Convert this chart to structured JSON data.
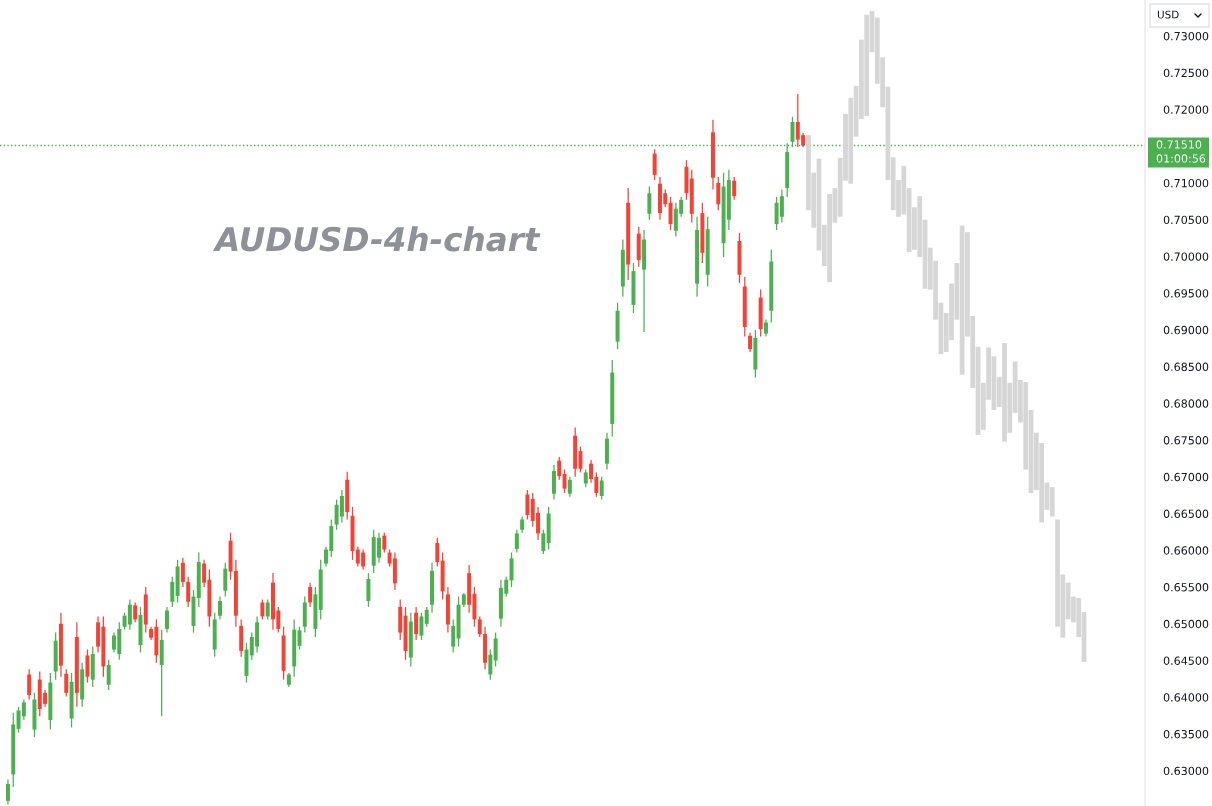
{
  "chart_data": {
    "type": "candlestick",
    "title": "AUDUSD-4h-chart",
    "ylabel": "USD",
    "annotations": [
      "01:00:56"
    ],
    "categories": [
      null,
      null,
      null,
      null,
      null,
      null,
      null,
      null,
      null,
      null,
      null,
      null,
      null,
      null,
      null,
      null,
      null,
      null,
      null,
      null,
      null,
      null,
      null,
      null,
      null,
      null,
      null,
      null,
      null,
      null,
      null,
      null,
      null,
      null,
      null,
      null,
      null,
      null,
      null,
      null,
      null,
      null,
      null,
      null,
      null,
      null,
      null,
      null,
      null,
      null,
      null,
      null,
      null,
      null,
      null,
      null,
      null,
      null,
      null,
      null,
      null,
      null,
      null,
      null,
      null,
      null,
      null,
      null,
      null,
      null,
      null,
      null,
      null,
      null,
      null,
      null,
      null,
      null,
      null,
      null,
      null,
      null,
      null,
      null,
      null,
      null,
      null,
      null,
      null,
      null,
      null,
      null,
      null,
      null,
      null,
      null,
      null,
      null,
      null,
      null,
      null,
      null,
      null,
      null,
      null,
      null,
      null,
      null,
      null,
      null,
      null,
      null,
      null,
      null,
      null,
      null,
      null,
      null,
      null,
      null,
      null,
      null,
      null,
      null,
      null,
      null,
      null,
      null,
      null,
      null,
      null,
      null,
      null,
      null,
      null,
      null,
      null,
      null,
      null,
      null,
      null,
      null,
      null,
      null,
      null,
      null,
      null,
      null,
      null,
      null,
      null,
      null,
      null,
      null,
      null,
      null,
      null,
      null,
      null,
      null,
      null,
      null,
      null,
      null,
      null,
      null,
      null,
      null,
      null,
      null,
      null,
      null,
      null,
      null,
      null,
      null,
      null,
      null,
      null,
      null,
      null,
      null,
      null,
      null,
      null,
      null,
      null,
      null,
      null,
      null,
      null,
      null,
      null,
      null,
      null,
      null,
      null,
      null,
      null,
      null,
      null,
      null,
      null,
      null,
      null,
      null,
      null,
      null,
      null,
      null,
      null,
      null,
      null,
      null,
      null,
      null
    ],
    "series": [
      {
        "ohlc": [
          null,
          [
            0.6259,
            0.6288,
            0.6254,
            0.6282
          ],
          [
            0.6295,
            0.6379,
            0.6278,
            0.6363
          ],
          [
            0.6357,
            0.6387,
            0.6352,
            0.6382
          ],
          [
            0.6374,
            0.6397,
            0.6369,
            0.6393
          ],
          [
            0.6431,
            0.6438,
            0.6397,
            0.6403
          ],
          [
            0.6356,
            0.6406,
            0.6346,
            0.6397
          ],
          [
            0.6424,
            0.6435,
            0.6374,
            0.6384
          ],
          [
            0.6406,
            0.641,
            0.6387,
            0.6391
          ],
          [
            0.6369,
            0.6433,
            0.6356,
            0.642
          ],
          [
            0.6435,
            0.6488,
            0.6424,
            0.6477
          ],
          [
            0.65,
            0.6515,
            0.6428,
            0.6443
          ],
          [
            0.6432,
            0.6438,
            0.6401,
            0.6406
          ],
          [
            0.6371,
            0.6433,
            0.6359,
            0.6421
          ],
          [
            0.6482,
            0.6502,
            0.6387,
            0.6406
          ],
          [
            0.6397,
            0.6447,
            0.6387,
            0.6438
          ],
          [
            0.6457,
            0.6465,
            0.642,
            0.6428
          ],
          [
            0.6424,
            0.6469,
            0.6414,
            0.6459
          ],
          [
            0.6502,
            0.651,
            0.6461,
            0.6469
          ],
          [
            0.6496,
            0.651,
            0.6428,
            0.6442
          ],
          [
            0.6417,
            0.6451,
            0.641,
            0.6444
          ],
          [
            0.6465,
            0.6488,
            0.6461,
            0.6484
          ],
          [
            0.6459,
            0.6502,
            0.6451,
            0.6493
          ],
          [
            0.6496,
            0.6515,
            0.6492,
            0.6511
          ],
          [
            0.6499,
            0.6533,
            0.6492,
            0.6526
          ],
          [
            0.6525,
            0.6529,
            0.6502,
            0.6506
          ],
          [
            0.6471,
            0.6523,
            0.6461,
            0.6512
          ],
          [
            0.654,
            0.655,
            0.6488,
            0.6499
          ],
          [
            0.6493,
            0.6496,
            0.6478,
            0.6481
          ],
          [
            0.6496,
            0.6506,
            0.6447,
            0.6457
          ],
          [
            0.6444,
            0.6492,
            0.6374,
            0.6478
          ],
          [
            0.6493,
            0.6523,
            0.6488,
            0.6518
          ],
          [
            0.653,
            0.6564,
            0.6523,
            0.6557
          ],
          [
            0.6538,
            0.6587,
            0.6529,
            0.6578
          ],
          [
            0.6583,
            0.659,
            0.655,
            0.6557
          ],
          [
            0.6557,
            0.6564,
            0.6523,
            0.653
          ],
          [
            0.6497,
            0.6546,
            0.6488,
            0.6537
          ],
          [
            0.6535,
            0.6597,
            0.6523,
            0.6584
          ],
          [
            0.6582,
            0.6587,
            0.655,
            0.6556
          ],
          [
            0.656,
            0.6574,
            0.6496,
            0.651
          ],
          [
            0.6465,
            0.6515,
            0.6455,
            0.6506
          ],
          [
            0.6511,
            0.6537,
            0.6506,
            0.6531
          ],
          [
            0.6545,
            0.6583,
            0.6537,
            0.6575
          ],
          [
            0.6613,
            0.6624,
            0.656,
            0.6571
          ],
          [
            0.6572,
            0.6587,
            0.6496,
            0.6511
          ],
          [
            0.6497,
            0.6506,
            0.6455,
            0.6463
          ],
          [
            0.6429,
            0.6474,
            0.642,
            0.6465
          ],
          [
            0.6457,
            0.6488,
            0.6451,
            0.6482
          ],
          [
            0.6469,
            0.651,
            0.6461,
            0.6502
          ],
          [
            0.6529,
            0.6533,
            0.6506,
            0.651
          ],
          [
            0.651,
            0.6533,
            0.6506,
            0.6529
          ],
          [
            0.6556,
            0.6569,
            0.6492,
            0.6506
          ],
          [
            0.6518,
            0.6523,
            0.6488,
            0.6493
          ],
          [
            0.6484,
            0.6496,
            0.6424,
            0.6436
          ],
          [
            0.6417,
            0.6433,
            0.6414,
            0.6431
          ],
          [
            0.6442,
            0.6506,
            0.6428,
            0.6492
          ],
          [
            0.647,
            0.6496,
            0.6465,
            0.6491
          ],
          [
            0.6496,
            0.6537,
            0.6488,
            0.6529
          ],
          [
            0.655,
            0.6556,
            0.6523,
            0.6529
          ],
          [
            0.6493,
            0.655,
            0.6482,
            0.654
          ],
          [
            0.6519,
            0.6587,
            0.6506,
            0.6574
          ],
          [
            0.6582,
            0.6605,
            0.6578,
            0.6601
          ],
          [
            0.6599,
            0.6642,
            0.6591,
            0.6633
          ],
          [
            0.6635,
            0.6669,
            0.6628,
            0.6662
          ],
          [
            0.6646,
            0.6682,
            0.6638,
            0.6674
          ],
          [
            0.6696,
            0.6707,
            0.6642,
            0.6652
          ],
          [
            0.6647,
            0.6659,
            0.6587,
            0.6599
          ],
          [
            0.6601,
            0.6605,
            0.6578,
            0.6582
          ],
          [
            0.6597,
            0.6601,
            0.6574,
            0.6578
          ],
          [
            0.6531,
            0.6569,
            0.6523,
            0.6561
          ],
          [
            0.6579,
            0.6628,
            0.6569,
            0.6618
          ],
          [
            0.659,
            0.6624,
            0.6583,
            0.6617
          ],
          [
            0.662,
            0.6624,
            0.6597,
            0.6601
          ],
          [
            0.6597,
            0.6601,
            0.6578,
            0.6582
          ],
          [
            0.6589,
            0.6597,
            0.6546,
            0.6555
          ],
          [
            0.6523,
            0.6533,
            0.6478,
            0.6488
          ],
          [
            0.6511,
            0.6523,
            0.6451,
            0.6463
          ],
          [
            0.6454,
            0.6515,
            0.6442,
            0.6503
          ],
          [
            0.6515,
            0.6523,
            0.6478,
            0.6486
          ],
          [
            0.6484,
            0.6515,
            0.6478,
            0.651
          ],
          [
            0.65,
            0.6523,
            0.6496,
            0.6519
          ],
          [
            0.6526,
            0.6583,
            0.6515,
            0.6572
          ],
          [
            0.661,
            0.6617,
            0.6578,
            0.6584
          ],
          [
            0.6586,
            0.6597,
            0.6533,
            0.6544
          ],
          [
            0.654,
            0.655,
            0.6488,
            0.6499
          ],
          [
            0.6469,
            0.6506,
            0.6461,
            0.6497
          ],
          [
            0.648,
            0.6537,
            0.6469,
            0.6526
          ],
          [
            0.6526,
            0.6542,
            0.6523,
            0.654
          ],
          [
            0.6569,
            0.658,
            0.6515,
            0.6526
          ],
          [
            0.6541,
            0.655,
            0.6496,
            0.6506
          ],
          [
            0.6506,
            0.651,
            0.6482,
            0.6486
          ],
          [
            0.6486,
            0.6496,
            0.6438,
            0.6447
          ],
          [
            0.6431,
            0.6465,
            0.6424,
            0.6458
          ],
          [
            0.645,
            0.6488,
            0.6442,
            0.648
          ],
          [
            0.6507,
            0.656,
            0.6496,
            0.6549
          ],
          [
            0.6541,
            0.6564,
            0.6537,
            0.656
          ],
          [
            0.6559,
            0.6597,
            0.655,
            0.6589
          ],
          [
            0.6602,
            0.6628,
            0.6597,
            0.6623
          ],
          [
            0.6628,
            0.6646,
            0.6624,
            0.6642
          ],
          [
            0.6676,
            0.6682,
            0.6642,
            0.6648
          ],
          [
            0.667,
            0.6678,
            0.6632,
            0.664
          ],
          [
            0.6651,
            0.6659,
            0.6614,
            0.6623
          ],
          [
            0.6599,
            0.6628,
            0.6595,
            0.6623
          ],
          [
            0.661,
            0.6659,
            0.6601,
            0.665
          ],
          [
            0.6677,
            0.6716,
            0.6669,
            0.6708
          ],
          [
            0.6722,
            0.6727,
            0.6696,
            0.6701
          ],
          [
            0.6704,
            0.671,
            0.6678,
            0.6684
          ],
          [
            0.6677,
            0.67,
            0.6673,
            0.6696
          ],
          [
            0.6756,
            0.6767,
            0.67,
            0.6711
          ],
          [
            0.6735,
            0.6741,
            0.6706,
            0.6711
          ],
          [
            0.6691,
            0.671,
            0.6686,
            0.6706
          ],
          [
            0.6718,
            0.6723,
            0.6692,
            0.6697
          ],
          [
            0.67,
            0.6706,
            0.6673,
            0.6678
          ],
          [
            0.6674,
            0.67,
            0.6669,
            0.6695
          ],
          [
            0.6718,
            0.676,
            0.671,
            0.6752
          ],
          [
            0.6772,
            0.6859,
            0.6755,
            0.6842
          ],
          [
            0.6884,
            0.6937,
            0.6874,
            0.6926
          ],
          [
            0.6959,
            0.7023,
            0.6945,
            0.7009
          ],
          [
            0.7073,
            0.7093,
            0.6968,
            0.6989
          ],
          [
            0.6934,
            0.6991,
            0.6923,
            0.698
          ],
          [
            0.7031,
            0.704,
            0.6986,
            0.6995
          ],
          [
            0.6982,
            0.7036,
            0.6897,
            0.7023
          ],
          [
            0.7058,
            0.7095,
            0.705,
            0.7086
          ],
          [
            0.714,
            0.7146,
            0.7104,
            0.7111
          ],
          [
            0.7099,
            0.7108,
            0.705,
            0.7059
          ],
          [
            0.7086,
            0.7091,
            0.7067,
            0.7071
          ],
          [
            0.7073,
            0.7081,
            0.7036,
            0.7044
          ],
          [
            0.7035,
            0.7073,
            0.7027,
            0.7065
          ],
          [
            0.7058,
            0.7081,
            0.7054,
            0.7077
          ],
          [
            0.7122,
            0.7131,
            0.7077,
            0.7086
          ],
          [
            0.7106,
            0.7118,
            0.7046,
            0.7058
          ],
          [
            0.6963,
            0.7054,
            0.6945,
            0.7036
          ],
          [
            0.7059,
            0.7073,
            0.6991,
            0.7005
          ],
          [
            0.6975,
            0.7054,
            0.6959,
            0.7037
          ],
          [
            0.7169,
            0.7186,
            0.7091,
            0.7107
          ],
          [
            0.71,
            0.7108,
            0.7063,
            0.7071
          ],
          [
            0.7018,
            0.7114,
            0.6999,
            0.7095
          ],
          [
            0.705,
            0.7118,
            0.7036,
            0.7104
          ],
          [
            0.7103,
            0.7108,
            0.7077,
            0.7082
          ],
          [
            0.7021,
            0.7032,
            0.6964,
            0.6975
          ],
          [
            0.6959,
            0.6972,
            0.6891,
            0.6904
          ],
          [
            0.6892,
            0.6896,
            0.687,
            0.6874
          ],
          [
            0.6846,
            0.69,
            0.6835,
            0.6889
          ],
          [
            0.6944,
            0.6955,
            0.6891,
            0.6901
          ],
          [
            0.6895,
            0.6914,
            0.6891,
            0.691
          ],
          [
            0.6926,
            0.7009,
            0.691,
            0.6993
          ],
          [
            0.7044,
            0.7081,
            0.7036,
            0.7073
          ],
          [
            0.7054,
            0.7091,
            0.7046,
            0.7082
          ],
          [
            0.7093,
            0.7154,
            0.7081,
            0.7142
          ],
          [
            0.7156,
            0.719,
            0.7149,
            0.7183
          ],
          [
            0.7183,
            0.7221,
            0.7149,
            0.7159
          ],
          [
            0.7165,
            0.7168,
            0.7149,
            0.7151
          ],
          null,
          null,
          null,
          null,
          null,
          null,
          null,
          null,
          null,
          null,
          null,
          null,
          null,
          null,
          null,
          null,
          null,
          null,
          null,
          null,
          null,
          null,
          null,
          null,
          null,
          null,
          null,
          null,
          null,
          null,
          null,
          null,
          null,
          null,
          null,
          null,
          null,
          null,
          null,
          null,
          null,
          null,
          null,
          null,
          null,
          null,
          null,
          null,
          null,
          null,
          null,
          null,
          null,
          null,
          null,
          null,
          null,
          null,
          null,
          null,
          null,
          null,
          null,
          null
        ],
        "colors": [
          null,
          "#4caf50",
          "#4caf50",
          "#4caf50",
          "#4caf50",
          "#f44336",
          "#4caf50",
          "#f44336",
          "#f44336",
          "#4caf50",
          "#4caf50",
          "#f44336",
          "#f44336",
          "#4caf50",
          "#f44336",
          "#4caf50",
          "#f44336",
          "#4caf50",
          "#f44336",
          "#f44336",
          "#4caf50",
          "#4caf50",
          "#4caf50",
          "#4caf50",
          "#4caf50",
          "#f44336",
          "#4caf50",
          "#f44336",
          "#f44336",
          "#f44336",
          "#4caf50",
          "#4caf50",
          "#4caf50",
          "#4caf50",
          "#f44336",
          "#f44336",
          "#4caf50",
          "#4caf50",
          "#f44336",
          "#f44336",
          "#4caf50",
          "#4caf50",
          "#4caf50",
          "#f44336",
          "#f44336",
          "#f44336",
          "#4caf50",
          "#4caf50",
          "#4caf50",
          "#f44336",
          "#4caf50",
          "#f44336",
          "#f44336",
          "#f44336",
          "#4caf50",
          "#4caf50",
          "#4caf50",
          "#4caf50",
          "#f44336",
          "#4caf50",
          "#4caf50",
          "#4caf50",
          "#4caf50",
          "#4caf50",
          "#4caf50",
          "#f44336",
          "#f44336",
          "#f44336",
          "#f44336",
          "#4caf50",
          "#4caf50",
          "#4caf50",
          "#f44336",
          "#f44336",
          "#f44336",
          "#f44336",
          "#f44336",
          "#4caf50",
          "#f44336",
          "#4caf50",
          "#4caf50",
          "#4caf50",
          "#f44336",
          "#f44336",
          "#f44336",
          "#4caf50",
          "#4caf50",
          "#4caf50",
          "#f44336",
          "#f44336",
          "#f44336",
          "#f44336",
          "#4caf50",
          "#4caf50",
          "#4caf50",
          "#4caf50",
          "#4caf50",
          "#4caf50",
          "#4caf50",
          "#f44336",
          "#f44336",
          "#f44336",
          "#4caf50",
          "#4caf50",
          "#4caf50",
          "#f44336",
          "#f44336",
          "#4caf50",
          "#f44336",
          "#f44336",
          "#4caf50",
          "#f44336",
          "#f44336",
          "#4caf50",
          "#4caf50",
          "#4caf50",
          "#4caf50",
          "#4caf50",
          "#f44336",
          "#4caf50",
          "#f44336",
          "#4caf50",
          "#4caf50",
          "#f44336",
          "#f44336",
          "#f44336",
          "#f44336",
          "#4caf50",
          "#4caf50",
          "#f44336",
          "#f44336",
          "#4caf50",
          "#f44336",
          "#4caf50",
          "#f44336",
          "#f44336",
          "#4caf50",
          "#4caf50",
          "#f44336",
          "#f44336",
          "#f44336",
          "#f44336",
          "#4caf50",
          "#f44336",
          "#4caf50",
          "#4caf50",
          "#4caf50",
          "#4caf50",
          "#4caf50",
          "#4caf50",
          "#f44336",
          "#f44336",
          null,
          null,
          null,
          null,
          null,
          null,
          null,
          null,
          null,
          null,
          null,
          null,
          null,
          null,
          null,
          null,
          null,
          null,
          null,
          null,
          null,
          null,
          null,
          null,
          null,
          null,
          null,
          null,
          null,
          null,
          null,
          null,
          null,
          null,
          null,
          null,
          null,
          null,
          null,
          null,
          null,
          null,
          null,
          null,
          null,
          null,
          null,
          null,
          null,
          null,
          null,
          null,
          null,
          null,
          null,
          null,
          null,
          null,
          null,
          null,
          null,
          null,
          null,
          null
        ]
      },
      {
        "type": "bar",
        "color": "#d6d6d6",
        "base": [
          null,
          null,
          null,
          null,
          null,
          null,
          null,
          null,
          null,
          null,
          null,
          null,
          null,
          null,
          null,
          null,
          null,
          null,
          null,
          null,
          null,
          null,
          null,
          null,
          null,
          null,
          null,
          null,
          null,
          null,
          null,
          null,
          null,
          null,
          null,
          null,
          null,
          null,
          null,
          null,
          null,
          null,
          null,
          null,
          null,
          null,
          null,
          null,
          null,
          null,
          null,
          null,
          null,
          null,
          null,
          null,
          null,
          null,
          null,
          null,
          null,
          null,
          null,
          null,
          null,
          null,
          null,
          null,
          null,
          null,
          null,
          null,
          null,
          null,
          null,
          null,
          null,
          null,
          null,
          null,
          null,
          null,
          null,
          null,
          null,
          null,
          null,
          null,
          null,
          null,
          null,
          null,
          null,
          null,
          null,
          null,
          null,
          null,
          null,
          null,
          null,
          null,
          null,
          null,
          null,
          null,
          null,
          null,
          null,
          null,
          null,
          null,
          null,
          null,
          null,
          null,
          null,
          null,
          null,
          null,
          null,
          null,
          null,
          null,
          null,
          null,
          null,
          null,
          null,
          null,
          null,
          null,
          null,
          null,
          null,
          null,
          null,
          null,
          null,
          null,
          null,
          null,
          null,
          null,
          null,
          null,
          null,
          null,
          null,
          null,
          null,
          null,
          0.7063,
          0.7039,
          0.7008,
          0.6987,
          0.6965,
          0.7046,
          0.7054,
          0.7103,
          0.7099,
          0.7163,
          0.7187,
          0.7191,
          0.7278,
          0.7235,
          0.7203,
          0.7104,
          0.7063,
          0.7054,
          0.7057,
          0.7006,
          0.7009,
          0.6999,
          0.6956,
          0.6955,
          0.6914,
          0.6867,
          0.687,
          0.6886,
          0.6914,
          0.6839,
          0.6891,
          0.6821,
          0.6757,
          0.6764,
          0.6805,
          0.6791,
          0.6795,
          0.6748,
          0.676,
          0.6787,
          0.6774,
          0.671,
          0.6678,
          0.6682,
          0.6638,
          0.6655,
          0.6646,
          0.6496,
          0.6481,
          0.6506,
          0.6502,
          0.6482,
          0.6448,
          null,
          null,
          null,
          null,
          null,
          null,
          null,
          null,
          null,
          null,
          null
        ],
        "values": [
          null,
          null,
          null,
          null,
          null,
          null,
          null,
          null,
          null,
          null,
          null,
          null,
          null,
          null,
          null,
          null,
          null,
          null,
          null,
          null,
          null,
          null,
          null,
          null,
          null,
          null,
          null,
          null,
          null,
          null,
          null,
          null,
          null,
          null,
          null,
          null,
          null,
          null,
          null,
          null,
          null,
          null,
          null,
          null,
          null,
          null,
          null,
          null,
          null,
          null,
          null,
          null,
          null,
          null,
          null,
          null,
          null,
          null,
          null,
          null,
          null,
          null,
          null,
          null,
          null,
          null,
          null,
          null,
          null,
          null,
          null,
          null,
          null,
          null,
          null,
          null,
          null,
          null,
          null,
          null,
          null,
          null,
          null,
          null,
          null,
          null,
          null,
          null,
          null,
          null,
          null,
          null,
          null,
          null,
          null,
          null,
          null,
          null,
          null,
          null,
          null,
          null,
          null,
          null,
          null,
          null,
          null,
          null,
          null,
          null,
          null,
          null,
          null,
          null,
          null,
          null,
          null,
          null,
          null,
          null,
          null,
          null,
          null,
          null,
          null,
          null,
          null,
          null,
          null,
          null,
          null,
          null,
          null,
          null,
          null,
          null,
          null,
          null,
          null,
          null,
          null,
          null,
          null,
          null,
          null,
          null,
          null,
          null,
          null,
          null,
          null,
          null,
          0.0102,
          0.0075,
          0.0125,
          0.0056,
          0.012,
          0.0047,
          0.008,
          0.0091,
          0.0117,
          0.0069,
          0.0108,
          0.0138,
          0.0056,
          0.009,
          0.0068,
          0.0127,
          0.0072,
          0.005,
          0.0066,
          0.0087,
          0.0058,
          0.0083,
          0.0094,
          0.0057,
          0.008,
          0.007,
          0.0053,
          0.0077,
          0.0077,
          0.0203,
          0.0142,
          0.0098,
          0.012,
          0.0064,
          0.0071,
          0.0073,
          0.0041,
          0.0134,
          0.0068,
          0.007,
          0.0058,
          0.0119,
          0.0113,
          0.0078,
          0.0108,
          0.0037,
          0.004,
          0.0146,
          0.0086,
          0.005,
          0.0035,
          0.0053,
          0.0068,
          null,
          null,
          null,
          null,
          null,
          null,
          null,
          null,
          null,
          null,
          null
        ]
      }
    ],
    "ylim": [
      0.6252,
      0.7349
    ],
    "yticks": [
      {
        "value": 0.63,
        "label": "0.63000"
      },
      {
        "value": 0.635,
        "label": "0.63500"
      },
      {
        "value": 0.64,
        "label": "0.64000"
      },
      {
        "value": 0.645,
        "label": "0.64500"
      },
      {
        "value": 0.65,
        "label": "0.65000"
      },
      {
        "value": 0.655,
        "label": "0.65500"
      },
      {
        "value": 0.66,
        "label": "0.66000"
      },
      {
        "value": 0.665,
        "label": "0.66500"
      },
      {
        "value": 0.67,
        "label": "0.67000"
      },
      {
        "value": 0.675,
        "label": "0.67500"
      },
      {
        "value": 0.68,
        "label": "0.68000"
      },
      {
        "value": 0.685,
        "label": "0.68500"
      },
      {
        "value": 0.69,
        "label": "0.69000"
      },
      {
        "value": 0.695,
        "label": "0.69500"
      },
      {
        "value": 0.7,
        "label": "0.70000"
      },
      {
        "value": 0.705,
        "label": "0.70500"
      },
      {
        "value": 0.71,
        "label": "0.71000"
      },
      {
        "value": 0.72,
        "label": "0.72000"
      },
      {
        "value": 0.725,
        "label": "0.72500"
      },
      {
        "value": 0.73,
        "label": "0.73000"
      }
    ],
    "ref_lines": [
      {
        "axis": "y",
        "value": 0.7151,
        "label": "0.71510",
        "color": "#4caf50",
        "line_style": "dotted"
      }
    ]
  }
}
